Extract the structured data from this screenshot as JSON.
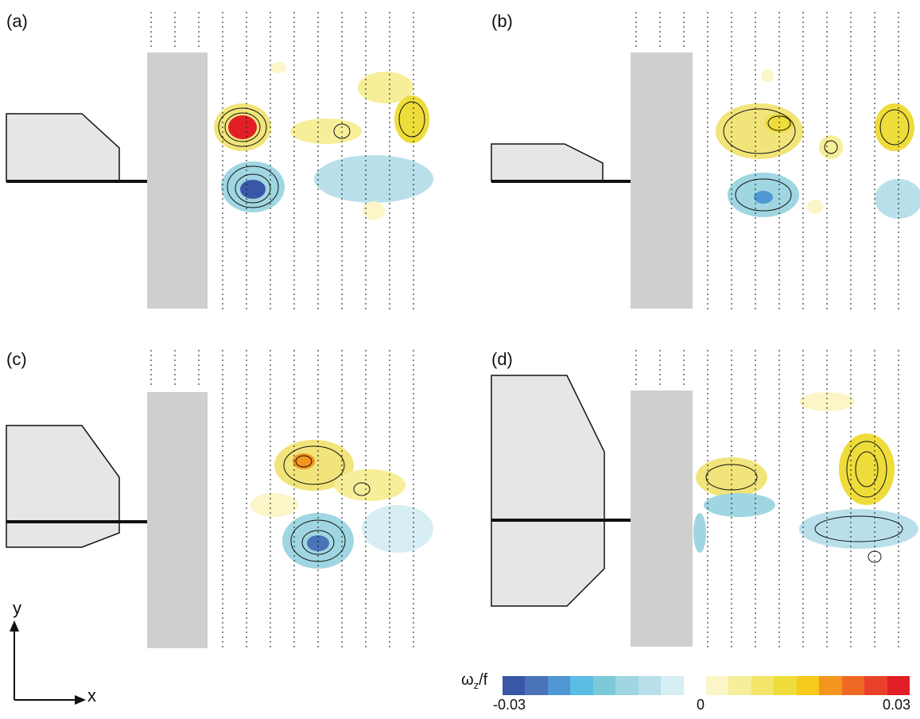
{
  "panels": [
    {
      "label": "(a)"
    },
    {
      "label": "(b)"
    },
    {
      "label": "(c)"
    },
    {
      "label": "(d)"
    }
  ],
  "axes": {
    "y_label": "y",
    "x_label": "x"
  },
  "colorbar": {
    "title_main": "ω",
    "title_sub": "z",
    "title_tail": "/f",
    "ticks": [
      "-0.03",
      "0",
      "0.03"
    ],
    "colors": [
      "#3a57a7",
      "#4a73b8",
      "#4f96d2",
      "#5bbde4",
      "#7cc9d9",
      "#9fd6e1",
      "#b9e0ea",
      "#d6eef4",
      "#ffffff",
      "#fbf5c8",
      "#f7ee9a",
      "#f2e56a",
      "#eedc3a",
      "#f7c91b",
      "#f4961e",
      "#ee6a24",
      "#e8432a",
      "#e21f26"
    ]
  }
}
